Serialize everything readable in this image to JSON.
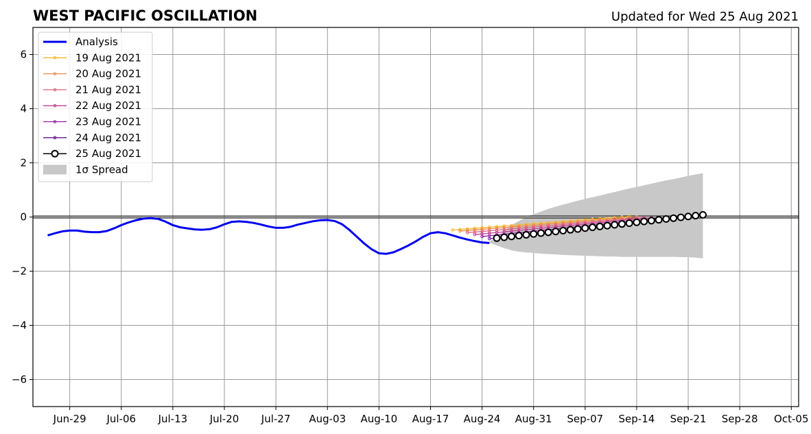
{
  "chart_data": {
    "type": "line",
    "title": "WEST PACIFIC OSCILLATION",
    "subtitle": "Updated for Wed 25 Aug 2021",
    "xlabel": "",
    "ylabel": "",
    "ylim": [
      -7,
      7
    ],
    "yticks": [
      -6,
      -4,
      -2,
      0,
      2,
      4,
      6
    ],
    "ytick_labels": [
      "−6",
      "−4",
      "−2",
      "0",
      "2",
      "4",
      "6"
    ],
    "xlim": [
      "2021-06-24",
      "2021-10-06"
    ],
    "xticks": [
      "2021-06-29",
      "2021-07-06",
      "2021-07-13",
      "2021-07-20",
      "2021-07-27",
      "2021-08-03",
      "2021-08-10",
      "2021-08-17",
      "2021-08-24",
      "2021-08-31",
      "2021-09-07",
      "2021-09-14",
      "2021-09-21",
      "2021-09-28",
      "2021-10-05"
    ],
    "xtick_labels": [
      "Jun-29",
      "Jul-06",
      "Jul-13",
      "Jul-20",
      "Jul-27",
      "Aug-03",
      "Aug-10",
      "Aug-17",
      "Aug-24",
      "Aug-31",
      "Sep-07",
      "Sep-14",
      "Sep-21",
      "Sep-28",
      "Oct-05"
    ],
    "grid": true,
    "legend_position": "upper-left",
    "zero_line": true,
    "colors": {
      "analysis": "#0000ee",
      "spread": "#c8c8c8",
      "grid": "#999999"
    },
    "analysis": {
      "name": "Analysis",
      "x": [
        "2021-06-26",
        "2021-06-27",
        "2021-06-28",
        "2021-06-29",
        "2021-06-30",
        "2021-07-01",
        "2021-07-02",
        "2021-07-03",
        "2021-07-04",
        "2021-07-05",
        "2021-07-06",
        "2021-07-07",
        "2021-07-08",
        "2021-07-09",
        "2021-07-10",
        "2021-07-11",
        "2021-07-12",
        "2021-07-13",
        "2021-07-14",
        "2021-07-15",
        "2021-07-16",
        "2021-07-17",
        "2021-07-18",
        "2021-07-19",
        "2021-07-20",
        "2021-07-21",
        "2021-07-22",
        "2021-07-23",
        "2021-07-24",
        "2021-07-25",
        "2021-07-26",
        "2021-07-27",
        "2021-07-28",
        "2021-07-29",
        "2021-07-30",
        "2021-07-31",
        "2021-08-01",
        "2021-08-02",
        "2021-08-03",
        "2021-08-04",
        "2021-08-05",
        "2021-08-06",
        "2021-08-07",
        "2021-08-08",
        "2021-08-09",
        "2021-08-10",
        "2021-08-11",
        "2021-08-12",
        "2021-08-13",
        "2021-08-14",
        "2021-08-15",
        "2021-08-16",
        "2021-08-17",
        "2021-08-18",
        "2021-08-19",
        "2021-08-20",
        "2021-08-21",
        "2021-08-22",
        "2021-08-23",
        "2021-08-24",
        "2021-08-25"
      ],
      "y": [
        -0.68,
        -0.6,
        -0.53,
        -0.5,
        -0.5,
        -0.54,
        -0.56,
        -0.56,
        -0.52,
        -0.42,
        -0.3,
        -0.2,
        -0.12,
        -0.06,
        -0.04,
        -0.07,
        -0.17,
        -0.3,
        -0.38,
        -0.42,
        -0.46,
        -0.47,
        -0.45,
        -0.38,
        -0.27,
        -0.18,
        -0.16,
        -0.18,
        -0.22,
        -0.28,
        -0.35,
        -0.4,
        -0.4,
        -0.36,
        -0.28,
        -0.22,
        -0.16,
        -0.12,
        -0.11,
        -0.15,
        -0.27,
        -0.48,
        -0.73,
        -0.98,
        -1.19,
        -1.34,
        -1.36,
        -1.3,
        -1.18,
        -1.05,
        -0.9,
        -0.73,
        -0.6,
        -0.56,
        -0.6,
        -0.68,
        -0.76,
        -0.83,
        -0.89,
        -0.94,
        -0.96
      ]
    },
    "forecast_series": [
      {
        "name": "19 Aug 2021",
        "color": "#f8b62a",
        "start": "2021-08-20",
        "y0": -0.48,
        "y1": 0.02,
        "days": 25
      },
      {
        "name": "20 Aug 2021",
        "color": "#f0884a",
        "start": "2021-08-21",
        "y0": -0.52,
        "y1": 0.0,
        "days": 25
      },
      {
        "name": "21 Aug 2021",
        "color": "#e0607a",
        "start": "2021-08-22",
        "y0": -0.58,
        "y1": -0.02,
        "days": 25
      },
      {
        "name": "22 Aug 2021",
        "color": "#c03a90",
        "start": "2021-08-23",
        "y0": -0.65,
        "y1": -0.03,
        "days": 25
      },
      {
        "name": "23 Aug 2021",
        "color": "#961aa0",
        "start": "2021-08-24",
        "y0": -0.72,
        "y1": -0.05,
        "days": 25
      },
      {
        "name": "24 Aug 2021",
        "color": "#601090",
        "start": "2021-08-25",
        "y0": -0.8,
        "y1": -0.08,
        "days": 25
      },
      {
        "name": "25 Aug 2021",
        "color": "#000000",
        "start": "2021-08-26",
        "y0": -0.78,
        "y1": 0.08,
        "days": 29,
        "marker": "open-circle"
      }
    ],
    "spread": {
      "name": "1σ Spread",
      "x": [
        "2021-08-25",
        "2021-08-26",
        "2021-08-27",
        "2021-08-28",
        "2021-08-29",
        "2021-08-30",
        "2021-08-31",
        "2021-09-01",
        "2021-09-02",
        "2021-09-03",
        "2021-09-04",
        "2021-09-05",
        "2021-09-06",
        "2021-09-07",
        "2021-09-08",
        "2021-09-09",
        "2021-09-10",
        "2021-09-11",
        "2021-09-12",
        "2021-09-13",
        "2021-09-14",
        "2021-09-15",
        "2021-09-16",
        "2021-09-17",
        "2021-09-18",
        "2021-09-19",
        "2021-09-20",
        "2021-09-21",
        "2021-09-22",
        "2021-09-23"
      ],
      "upper": [
        -0.9,
        -0.75,
        -0.5,
        -0.3,
        -0.15,
        0.0,
        0.1,
        0.2,
        0.3,
        0.38,
        0.46,
        0.53,
        0.6,
        0.67,
        0.73,
        0.79,
        0.86,
        0.92,
        0.99,
        1.05,
        1.11,
        1.17,
        1.23,
        1.29,
        1.35,
        1.4,
        1.46,
        1.52,
        1.57,
        1.62
      ],
      "lower": [
        -0.95,
        -1.05,
        -1.15,
        -1.23,
        -1.28,
        -1.31,
        -1.33,
        -1.35,
        -1.37,
        -1.38,
        -1.4,
        -1.41,
        -1.42,
        -1.43,
        -1.44,
        -1.45,
        -1.46,
        -1.46,
        -1.47,
        -1.47,
        -1.47,
        -1.47,
        -1.47,
        -1.47,
        -1.47,
        -1.47,
        -1.48,
        -1.48,
        -1.5,
        -1.53
      ]
    }
  }
}
